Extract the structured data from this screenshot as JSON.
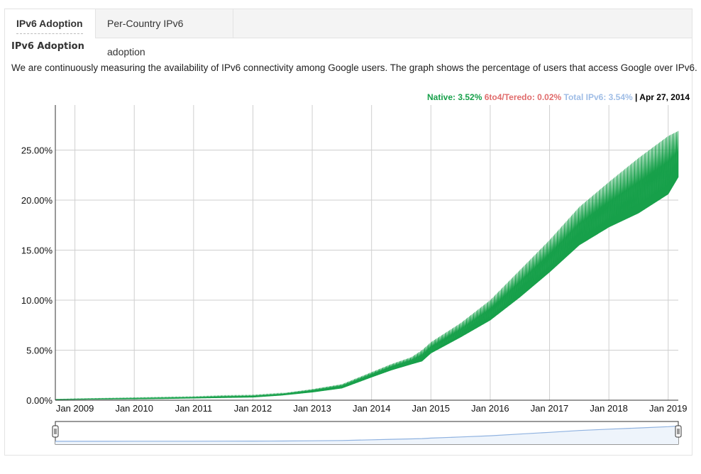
{
  "tabs": [
    {
      "label": "IPv6 Adoption",
      "active": true
    },
    {
      "label": "Per-Country IPv6 adoption",
      "active": false
    }
  ],
  "section_title": "IPv6 Adoption",
  "description": "We are continuously measuring the availability of IPv6 connectivity among Google users. The graph shows the percentage of users that access Google over IPv6.",
  "legend": {
    "native": "Native: 3.52%",
    "teredo": "6to4/Teredo: 0.02%",
    "total": "Total IPv6: 3.54%",
    "separator": "|",
    "date": "Apr 27, 2014"
  },
  "colors": {
    "native": "#17a04a",
    "teredo": "#e06c6c",
    "total": "#9fbde6",
    "grid": "#cfcfcf",
    "navigator_fill": "#eef4fb",
    "navigator_line": "#8fb2e0"
  },
  "chart_data": {
    "type": "area",
    "title": "",
    "xlabel": "",
    "ylabel": "",
    "y_tick_labels": [
      "0.00%",
      "5.00%",
      "10.00%",
      "15.00%",
      "20.00%",
      "25.00%"
    ],
    "y_ticks": [
      0,
      5,
      10,
      15,
      20,
      25
    ],
    "ylim": [
      0,
      29.5
    ],
    "x_tick_labels": [
      "Jan 2009",
      "Jan 2010",
      "Jan 2011",
      "Jan 2012",
      "Jan 2013",
      "Jan 2014",
      "Jan 2015",
      "Jan 2016",
      "Jan 2017",
      "Jan 2018",
      "Jan 2019"
    ],
    "x_ticks": [
      2009.0,
      2010.0,
      2011.0,
      2012.0,
      2013.0,
      2014.0,
      2015.0,
      2016.0,
      2017.0,
      2018.0,
      2019.0
    ],
    "xlim": [
      2008.67,
      2019.17
    ],
    "grid": true,
    "legend_position": "top-right",
    "series": [
      {
        "name": "Native",
        "x": [
          2008.67,
          2009.0,
          2009.5,
          2010.0,
          2010.5,
          2011.0,
          2011.5,
          2012.0,
          2012.5,
          2013.0,
          2013.5,
          2014.0,
          2014.33,
          2014.67,
          2014.85,
          2015.0,
          2015.5,
          2016.0,
          2016.5,
          2017.0,
          2017.5,
          2018.0,
          2018.5,
          2019.0,
          2019.17
        ],
        "low": [
          0.05,
          0.08,
          0.1,
          0.12,
          0.15,
          0.2,
          0.25,
          0.3,
          0.5,
          0.8,
          1.2,
          2.3,
          3.0,
          3.6,
          3.9,
          4.7,
          6.3,
          8.0,
          10.3,
          12.8,
          15.5,
          17.3,
          18.7,
          20.6,
          22.3
        ],
        "high": [
          0.1,
          0.15,
          0.2,
          0.25,
          0.3,
          0.35,
          0.45,
          0.5,
          0.7,
          1.1,
          1.6,
          2.8,
          3.6,
          4.3,
          5.0,
          5.8,
          7.7,
          10.0,
          13.0,
          16.0,
          19.3,
          21.8,
          24.2,
          26.4,
          26.9
        ]
      }
    ]
  }
}
